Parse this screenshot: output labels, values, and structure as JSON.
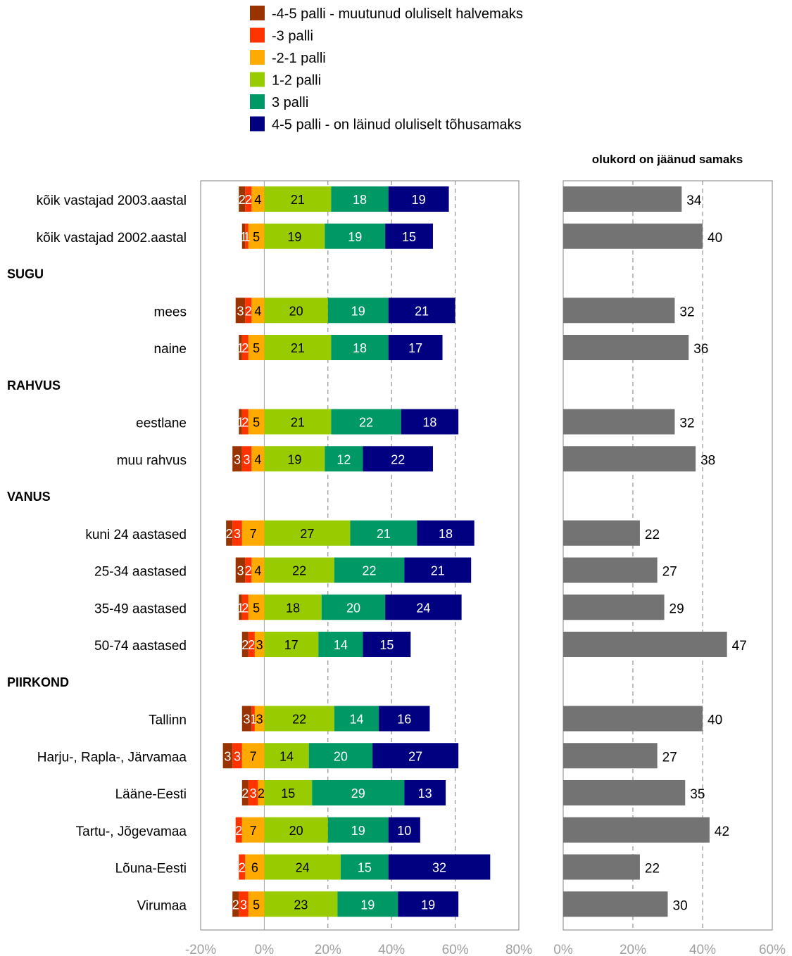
{
  "chart_data": [
    {
      "type": "bar",
      "stacked": true,
      "orientation": "horizontal",
      "xlim": [
        -20,
        80
      ],
      "tick_labels": [
        "-20%",
        "0%",
        "20%",
        "40%",
        "60%",
        "80%"
      ],
      "legend_placement": "top",
      "grid": "dashed vertical at 20%, 40%, 60%",
      "categories": [
        "kõik vastajad  2003.aastal",
        "kõik vastajad  2002.aastal",
        "SUGU",
        "mees",
        "naine",
        "RAHVUS",
        "eestlane",
        "muu rahvus",
        "VANUS",
        "kuni 24 aastased",
        "25-34 aastased",
        "35-49 aastased",
        "50-74 aastased",
        "PIIRKOND",
        "Tallinn",
        "Harju-, Rapla-, Järvamaa",
        "Lääne-Eesti",
        "Tartu-, Jõgevamaa",
        "Lõuna-Eesti",
        "Virumaa"
      ],
      "section_headers": [
        "SUGU",
        "RAHVUS",
        "VANUS",
        "PIIRKOND"
      ],
      "series": [
        {
          "name": "-4-5 palli - muutunud oluliselt halvemaks",
          "color": "#993300",
          "text_color": "#ffffff",
          "side": "negative",
          "values": [
            2,
            1,
            null,
            3,
            1,
            null,
            1,
            3,
            null,
            2,
            3,
            1,
            2,
            null,
            3,
            3,
            2,
            0,
            0,
            2
          ]
        },
        {
          "name": "-3 palli",
          "color": "#ff3300",
          "text_color": "#ffffff",
          "side": "negative",
          "values": [
            2,
            1,
            null,
            2,
            2,
            null,
            2,
            3,
            null,
            3,
            2,
            2,
            2,
            null,
            1,
            3,
            3,
            2,
            2,
            3
          ]
        },
        {
          "name": "-2-1 palli",
          "color": "#ffaa00",
          "text_color": "#000000",
          "side": "negative",
          "values": [
            4,
            5,
            null,
            4,
            5,
            null,
            5,
            4,
            null,
            7,
            4,
            5,
            3,
            null,
            3,
            7,
            2,
            7,
            6,
            5
          ]
        },
        {
          "name": "1-2 palli",
          "color": "#99cc00",
          "text_color": "#000000",
          "side": "positive",
          "values": [
            21,
            19,
            null,
            20,
            21,
            null,
            21,
            19,
            null,
            27,
            22,
            18,
            17,
            null,
            22,
            14,
            15,
            20,
            24,
            23
          ]
        },
        {
          "name": "3 palli",
          "color": "#009966",
          "text_color": "#ffffff",
          "side": "positive",
          "values": [
            18,
            19,
            null,
            19,
            18,
            null,
            22,
            12,
            null,
            21,
            22,
            20,
            14,
            null,
            14,
            20,
            29,
            19,
            15,
            19
          ]
        },
        {
          "name": "4-5 palli - on läinud oluliselt tõhusamaks",
          "color": "#000080",
          "text_color": "#ffffff",
          "side": "positive",
          "values": [
            19,
            15,
            null,
            21,
            17,
            null,
            18,
            22,
            null,
            18,
            21,
            24,
            15,
            null,
            16,
            27,
            13,
            10,
            32,
            19
          ]
        }
      ],
      "segment_labels": [
        [
          "2",
          "2",
          "4",
          "21",
          "18",
          "19"
        ],
        [
          "1",
          "1",
          "5",
          "19",
          "19",
          "15"
        ],
        null,
        [
          "3",
          "2",
          "4",
          "20",
          "19",
          "21"
        ],
        [
          "1",
          "2",
          "5",
          "21",
          "18",
          "17"
        ],
        null,
        [
          "1",
          "2",
          "5",
          "21",
          "22",
          "18"
        ],
        [
          "3",
          "3",
          "4",
          "19",
          "12",
          "22"
        ],
        null,
        [
          "2",
          "3",
          "7",
          "27",
          "21",
          "18"
        ],
        [
          "3",
          "2",
          "4",
          "22",
          "22",
          "21"
        ],
        [
          "1",
          "2",
          "5",
          "18",
          "20",
          "24"
        ],
        [
          "2",
          "2",
          "3",
          "17",
          "14",
          "15"
        ],
        null,
        [
          "3",
          "1",
          "3",
          "22",
          "14",
          "16"
        ],
        [
          "3",
          "3",
          "7",
          "14",
          "20",
          "27"
        ],
        [
          "2",
          "3",
          "2",
          "15",
          "29",
          "13"
        ],
        [
          "",
          "2",
          "7",
          "20",
          "19",
          "10"
        ],
        [
          "",
          "2",
          "6",
          "24",
          "15",
          "32"
        ],
        [
          "2",
          "3",
          "5",
          "23",
          "19",
          "19"
        ]
      ]
    },
    {
      "type": "bar",
      "orientation": "horizontal",
      "title": "olukord on jäänud samaks",
      "xlim": [
        0,
        60
      ],
      "tick_labels": [
        "0%",
        "20%",
        "40%",
        "60%"
      ],
      "grid": "dashed vertical at 20%, 40%",
      "color": "#737373",
      "values": [
        34,
        40,
        null,
        32,
        36,
        null,
        32,
        38,
        null,
        22,
        27,
        29,
        47,
        null,
        40,
        27,
        35,
        42,
        22,
        30
      ]
    }
  ]
}
